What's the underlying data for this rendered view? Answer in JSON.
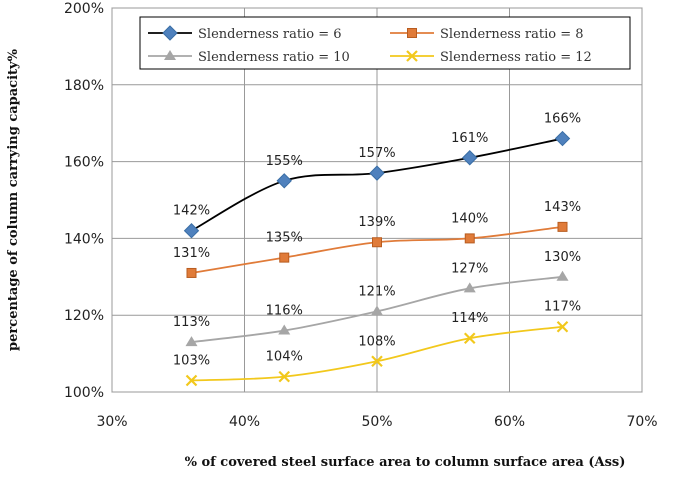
{
  "chart_data": {
    "type": "line",
    "title": "",
    "xlabel": "% of covered steel surface area to column surface area (Ass)",
    "ylabel": "percentage of column carrying capacity%",
    "xlim": [
      30,
      70
    ],
    "ylim": [
      100,
      200
    ],
    "x_ticks": [
      30,
      40,
      50,
      60,
      70
    ],
    "y_ticks": [
      100,
      120,
      140,
      160,
      180,
      200
    ],
    "x_tick_labels": [
      "30%",
      "40%",
      "50%",
      "60%",
      "70%"
    ],
    "y_tick_labels": [
      "100%",
      "120%",
      "140%",
      "160%",
      "180%",
      "200%"
    ],
    "grid": true,
    "legend_position": "top",
    "series": [
      {
        "name": "Slenderness ratio = 6",
        "color": "#4f81bd",
        "line_color": "#000000",
        "marker": "diamond",
        "x": [
          36,
          43,
          50,
          57,
          64
        ],
        "values": [
          142,
          155,
          157,
          161,
          166
        ],
        "labels": [
          "142%",
          "155%",
          "157%",
          "161%",
          "166%"
        ]
      },
      {
        "name": "Slenderness ratio = 8",
        "color": "#e07b39",
        "line_color": "#e07b39",
        "marker": "square",
        "x": [
          36,
          43,
          50,
          57,
          64
        ],
        "values": [
          131,
          135,
          139,
          140,
          143
        ],
        "labels": [
          "131%",
          "135%",
          "139%",
          "140%",
          "143%"
        ]
      },
      {
        "name": "Slenderness ratio = 10",
        "color": "#a6a6a6",
        "line_color": "#a6a6a6",
        "marker": "triangle",
        "x": [
          36,
          43,
          50,
          57,
          64
        ],
        "values": [
          113,
          116,
          121,
          127,
          130
        ],
        "labels": [
          "113%",
          "116%",
          "121%",
          "127%",
          "130%"
        ]
      },
      {
        "name": "Slenderness ratio = 12",
        "color": "#f2c81c",
        "line_color": "#f2c81c",
        "marker": "x",
        "x": [
          36,
          43,
          50,
          57,
          64
        ],
        "values": [
          103,
          104,
          108,
          114,
          117
        ],
        "labels": [
          "103%",
          "104%",
          "108%",
          "114%",
          "117%"
        ]
      }
    ]
  }
}
